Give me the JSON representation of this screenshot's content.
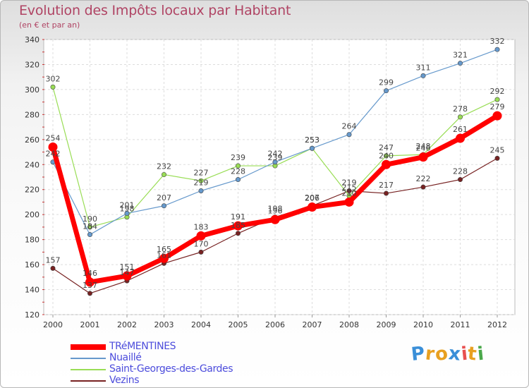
{
  "header": {
    "title": "Evolution des Impôts locaux par Habitant",
    "subtitle": "(en € et par an)"
  },
  "chart_data": {
    "type": "line",
    "title": "Evolution des Impôts locaux par Habitant",
    "subtitle": "(en € et par an)",
    "xlabel": "",
    "ylabel": "",
    "x": [
      "2000",
      "2001",
      "2002",
      "2003",
      "2004",
      "2005",
      "2006",
      "2007",
      "2008",
      "2009",
      "2010",
      "2011",
      "2012"
    ],
    "ylim": [
      120,
      340
    ],
    "yticks": [
      120,
      140,
      160,
      180,
      200,
      220,
      240,
      260,
      280,
      300,
      320,
      340
    ],
    "grid": true,
    "legend_position": "bottom-left",
    "series": [
      {
        "name": "TRéMENTINES",
        "color": "#ff0000",
        "values": [
          254,
          146,
          151,
          165,
          183,
          191,
          196,
          206,
          210,
          240,
          246,
          261,
          279
        ]
      },
      {
        "name": "Nuaillé",
        "color": "#6699cc",
        "values": [
          242,
          184,
          201,
          207,
          219,
          228,
          242,
          253,
          264,
          299,
          311,
          321,
          332
        ]
      },
      {
        "name": "Saint-Georges-des-Gardes",
        "color": "#99dd55",
        "values": [
          302,
          190,
          198,
          232,
          227,
          239,
          239,
          253,
          215,
          247,
          248,
          278,
          292
        ]
      },
      {
        "name": "Vezins",
        "color": "#772222",
        "values": [
          157,
          137,
          147,
          161,
          170,
          185,
          198,
          207,
          219,
          217,
          222,
          228,
          245
        ]
      }
    ]
  },
  "logo": {
    "letters": [
      "P",
      "r",
      "o",
      "x",
      "i",
      "t",
      "i"
    ],
    "colors": [
      "#3a8fd8",
      "#e8a020",
      "#e8a020",
      "#3a8fd8",
      "#e85050",
      "#e8a020",
      "#4aa84a"
    ]
  }
}
